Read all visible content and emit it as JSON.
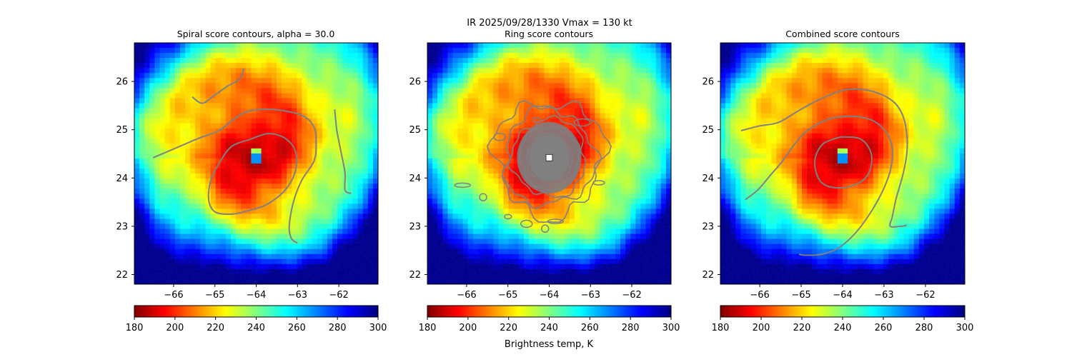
{
  "suptitle": {
    "line1": "IR  2025/09/28/1330    Vmax = 130 kt"
  },
  "colors": {
    "contour": "#808080",
    "background": "#ffffff",
    "box": "#000000",
    "center_marker": "#ffffff"
  },
  "colormap": {
    "name": "jet_r",
    "stops": [
      "#7f0000",
      "#ff0000",
      "#ff7f00",
      "#ffff00",
      "#80ff80",
      "#00ffff",
      "#0080ff",
      "#0000ff",
      "#00007f"
    ]
  },
  "chart_data": [
    {
      "type": "heatmap",
      "title": "Spiral score contours, alpha = 30.0",
      "xlim": [
        -66.95,
        -61.05
      ],
      "ylim": [
        21.8,
        26.8
      ],
      "x_ticks": [
        -66,
        -65,
        -64,
        -63,
        -62
      ],
      "x_tick_labels": [
        "−66",
        "−65",
        "−64",
        "−63",
        "−62"
      ],
      "y_ticks": [
        22,
        23,
        24,
        25,
        26
      ],
      "y_tick_labels": [
        "22",
        "23",
        "24",
        "25",
        "26"
      ],
      "storm_center": [
        -64.0,
        24.42
      ],
      "contours": [
        [
          [
            -66.5,
            24.42
          ],
          [
            -66.0,
            24.6
          ],
          [
            -65.4,
            24.82
          ],
          [
            -64.9,
            24.98
          ],
          [
            -64.6,
            25.18
          ],
          [
            -64.2,
            25.38
          ],
          [
            -63.6,
            25.42
          ],
          [
            -62.9,
            25.3
          ],
          [
            -62.6,
            25.05
          ],
          [
            -62.55,
            24.7
          ],
          [
            -62.6,
            24.35
          ],
          [
            -62.9,
            23.95
          ],
          [
            -63.1,
            23.5
          ],
          [
            -63.2,
            23.0
          ],
          [
            -63.15,
            22.75
          ],
          [
            -63.0,
            22.65
          ]
        ],
        [
          [
            -64.15,
            24.8
          ],
          [
            -63.7,
            24.92
          ],
          [
            -63.3,
            24.82
          ],
          [
            -63.05,
            24.55
          ],
          [
            -63.05,
            24.15
          ],
          [
            -63.3,
            23.75
          ],
          [
            -63.75,
            23.45
          ],
          [
            -64.2,
            23.32
          ],
          [
            -64.6,
            23.25
          ],
          [
            -65.0,
            23.3
          ],
          [
            -65.15,
            23.55
          ],
          [
            -65.1,
            23.95
          ],
          [
            -64.9,
            24.3
          ],
          [
            -64.6,
            24.65
          ],
          [
            -64.15,
            24.8
          ]
        ],
        [
          [
            -65.55,
            25.68
          ],
          [
            -65.3,
            25.55
          ],
          [
            -65.0,
            25.72
          ],
          [
            -64.7,
            25.9
          ],
          [
            -64.4,
            26.05
          ],
          [
            -64.3,
            26.27
          ]
        ],
        [
          [
            -62.1,
            25.42
          ],
          [
            -62.05,
            25.0
          ],
          [
            -61.95,
            24.55
          ],
          [
            -61.85,
            24.1
          ],
          [
            -61.85,
            23.75
          ],
          [
            -61.7,
            23.68
          ]
        ]
      ],
      "colorbar_ticks": [
        180,
        200,
        220,
        240,
        260,
        280,
        300
      ],
      "colorbar_range": [
        180,
        300
      ],
      "colorbar_label": ""
    },
    {
      "type": "heatmap",
      "title": "Ring score contours",
      "xlim": [
        -66.95,
        -61.05
      ],
      "ylim": [
        21.8,
        26.8
      ],
      "x_ticks": [
        -66,
        -65,
        -64,
        -63,
        -62
      ],
      "x_tick_labels": [
        "−66",
        "−65",
        "−64",
        "−63",
        "−62"
      ],
      "y_ticks": [
        22,
        23,
        24,
        25,
        26
      ],
      "y_tick_labels": [
        "22",
        "23",
        "24",
        "25",
        "26"
      ],
      "storm_center": [
        -64.0,
        24.42
      ],
      "ring_fill_radii": [
        0.55,
        0.95
      ],
      "contour_rings": [
        {
          "r": 1.25,
          "noise": 0.13
        },
        {
          "r": 1.05,
          "noise": 0.1
        },
        {
          "r": 0.85,
          "noise": 0.08
        },
        {
          "r": 0.68,
          "noise": 0.06
        },
        {
          "r": 0.52,
          "noise": 0.05
        },
        {
          "r": 0.38,
          "noise": 0.04
        }
      ],
      "contour_blobs": [
        [
          -65.0,
          23.2
        ],
        [
          -64.55,
          23.05
        ],
        [
          -63.85,
          23.1
        ],
        [
          -65.6,
          23.6
        ],
        [
          -62.8,
          23.9
        ],
        [
          -63.2,
          25.15
        ],
        [
          -64.3,
          25.2
        ],
        [
          -65.2,
          24.85
        ],
        [
          -66.1,
          23.85
        ],
        [
          -64.1,
          22.95
        ]
      ],
      "colorbar_ticks": [
        180,
        200,
        220,
        240,
        260,
        280,
        300
      ],
      "colorbar_range": [
        180,
        300
      ],
      "colorbar_label": "Brightness temp, K"
    },
    {
      "type": "heatmap",
      "title": "Combined score contours",
      "xlim": [
        -66.95,
        -61.05
      ],
      "ylim": [
        21.8,
        26.8
      ],
      "x_ticks": [
        -66,
        -65,
        -64,
        -63,
        -62
      ],
      "x_tick_labels": [
        "−66",
        "−65",
        "−64",
        "−63",
        "−62"
      ],
      "y_ticks": [
        22,
        23,
        24,
        25,
        26
      ],
      "y_tick_labels": [
        "22",
        "23",
        "24",
        "25",
        "26"
      ],
      "storm_center": [
        -64.0,
        24.42
      ],
      "contours": [
        [
          [
            -66.45,
            24.98
          ],
          [
            -66.0,
            25.08
          ],
          [
            -65.55,
            25.15
          ],
          [
            -65.05,
            25.4
          ],
          [
            -64.5,
            25.65
          ],
          [
            -63.9,
            25.83
          ],
          [
            -63.3,
            25.8
          ],
          [
            -62.8,
            25.6
          ],
          [
            -62.55,
            25.3
          ],
          [
            -62.45,
            24.9
          ],
          [
            -62.45,
            24.5
          ],
          [
            -62.55,
            24.05
          ],
          [
            -62.7,
            23.6
          ],
          [
            -62.8,
            23.2
          ],
          [
            -62.85,
            23.0
          ],
          [
            -62.6,
            23.0
          ],
          [
            -62.45,
            23.02
          ]
        ],
        [
          [
            -66.35,
            23.55
          ],
          [
            -66.05,
            23.75
          ],
          [
            -65.75,
            24.05
          ],
          [
            -65.45,
            24.35
          ],
          [
            -65.2,
            24.65
          ],
          [
            -64.9,
            24.95
          ],
          [
            -64.4,
            25.2
          ],
          [
            -63.85,
            25.28
          ],
          [
            -63.3,
            25.2
          ],
          [
            -62.95,
            24.95
          ],
          [
            -62.8,
            24.6
          ],
          [
            -62.85,
            24.15
          ],
          [
            -63.05,
            23.7
          ],
          [
            -63.35,
            23.25
          ],
          [
            -63.7,
            22.85
          ],
          [
            -64.1,
            22.55
          ],
          [
            -64.5,
            22.42
          ],
          [
            -64.9,
            22.4
          ],
          [
            -65.05,
            22.42
          ]
        ],
        [
          [
            -64.05,
            24.85
          ],
          [
            -63.6,
            24.82
          ],
          [
            -63.35,
            24.6
          ],
          [
            -63.3,
            24.3
          ],
          [
            -63.45,
            24.0
          ],
          [
            -63.8,
            23.83
          ],
          [
            -64.2,
            23.8
          ],
          [
            -64.5,
            23.9
          ],
          [
            -64.65,
            24.15
          ],
          [
            -64.65,
            24.45
          ],
          [
            -64.45,
            24.72
          ],
          [
            -64.05,
            24.85
          ]
        ]
      ],
      "colorbar_ticks": [
        180,
        200,
        220,
        240,
        260,
        280,
        300
      ],
      "colorbar_range": [
        180,
        300
      ],
      "colorbar_label": ""
    }
  ]
}
